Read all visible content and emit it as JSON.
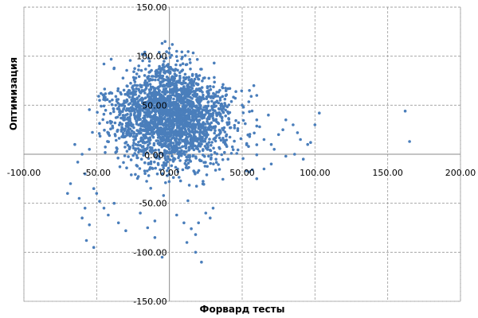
{
  "chart_data": {
    "type": "scatter",
    "xlabel": "Форвард тесты",
    "ylabel": "Оптимизация",
    "xlim": [
      -100,
      200
    ],
    "ylim": [
      -150,
      150
    ],
    "x_ticks": [
      -100,
      -50,
      0,
      50,
      100,
      150,
      200
    ],
    "y_ticks": [
      -150,
      -100,
      -50,
      0,
      50,
      100,
      150
    ],
    "x_tick_labels": [
      "-100.00",
      "-50.00",
      "0.00",
      "50.00",
      "100.00",
      "150.00",
      "200.00"
    ],
    "y_tick_labels": [
      "-150.00",
      "-100.00",
      "-50.00",
      "0.00",
      "50.00",
      "100.00",
      "150.00"
    ],
    "grid": true,
    "marker_color": "#4a7ebb",
    "point_cloud": {
      "center": [
        0,
        40
      ],
      "sd": [
        20,
        25
      ],
      "count": 2400
    },
    "series": [
      {
        "points": [
          [
            -60,
            0
          ],
          [
            -65,
            10
          ],
          [
            -63,
            -8
          ],
          [
            -55,
            5
          ],
          [
            -58,
            -20
          ],
          [
            -52,
            -35
          ],
          [
            -62,
            -45
          ],
          [
            -58,
            -55
          ],
          [
            -60,
            -65
          ],
          [
            -55,
            -72
          ],
          [
            -57,
            -88
          ],
          [
            -52,
            -95
          ],
          [
            -70,
            -40
          ],
          [
            -68,
            -30
          ],
          [
            -50,
            -40
          ],
          [
            -48,
            -48
          ],
          [
            -45,
            -55
          ],
          [
            -42,
            -62
          ],
          [
            -35,
            -70
          ],
          [
            -30,
            -78
          ],
          [
            -38,
            -50
          ],
          [
            -20,
            -60
          ],
          [
            -10,
            -68
          ],
          [
            -15,
            -75
          ],
          [
            5,
            -62
          ],
          [
            10,
            -70
          ],
          [
            15,
            -76
          ],
          [
            18,
            -82
          ],
          [
            20,
            -70
          ],
          [
            25,
            -60
          ],
          [
            30,
            -55
          ],
          [
            28,
            -65
          ],
          [
            12,
            -90
          ],
          [
            18,
            -100
          ],
          [
            22,
            -110
          ],
          [
            -5,
            -105
          ],
          [
            -10,
            -85
          ],
          [
            -45,
            58
          ],
          [
            -47,
            62
          ],
          [
            -48,
            55
          ],
          [
            -45,
            92
          ],
          [
            -40,
            97
          ],
          [
            -38,
            88
          ],
          [
            -5,
            113
          ],
          [
            2,
            112
          ],
          [
            -3,
            115
          ],
          [
            0,
            108
          ],
          [
            5,
            105
          ],
          [
            60,
            35
          ],
          [
            62,
            28
          ],
          [
            65,
            15
          ],
          [
            70,
            10
          ],
          [
            72,
            5
          ],
          [
            75,
            20
          ],
          [
            78,
            25
          ],
          [
            80,
            35
          ],
          [
            85,
            30
          ],
          [
            88,
            22
          ],
          [
            90,
            15
          ],
          [
            86,
            0
          ],
          [
            92,
            -5
          ],
          [
            95,
            10
          ],
          [
            100,
            30
          ],
          [
            103,
            42
          ],
          [
            97,
            12
          ],
          [
            70,
            -10
          ],
          [
            65,
            -15
          ],
          [
            60,
            -25
          ],
          [
            55,
            -18
          ],
          [
            80,
            -2
          ],
          [
            68,
            40
          ],
          [
            60,
            60
          ],
          [
            58,
            70
          ],
          [
            55,
            65
          ],
          [
            50,
            50
          ],
          [
            162,
            44
          ],
          [
            165,
            13
          ]
        ]
      }
    ]
  }
}
